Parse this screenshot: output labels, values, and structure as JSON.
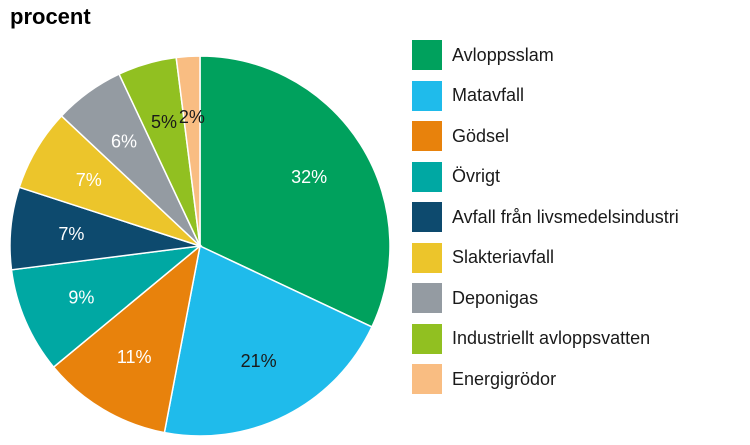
{
  "chart_data": {
    "type": "pie",
    "title": "procent",
    "slices": [
      {
        "label": "Avloppsslam",
        "value": 32,
        "value_label": "32%",
        "color": "#00a15d",
        "text_color": "#ffffff"
      },
      {
        "label": "Matavfall",
        "value": 21,
        "value_label": "21%",
        "color": "#1fbbeb",
        "text_color": "#1a1a1a"
      },
      {
        "label": "Gödsel",
        "value": 11,
        "value_label": "11%",
        "color": "#e8820c",
        "text_color": "#ffffff"
      },
      {
        "label": "Övrigt",
        "value": 9,
        "value_label": "9%",
        "color": "#00a8a3",
        "text_color": "#ffffff"
      },
      {
        "label": "Avfall från livsmedelsindustri",
        "value": 7,
        "value_label": "7%",
        "color": "#0d4a6e",
        "text_color": "#ffffff"
      },
      {
        "label": "Slakteriavfall",
        "value": 7,
        "value_label": "7%",
        "color": "#ecc52b",
        "text_color": "#ffffff"
      },
      {
        "label": "Deponigas",
        "value": 6,
        "value_label": "6%",
        "color": "#949ba2",
        "text_color": "#ffffff"
      },
      {
        "label": "Industriellt avloppsvatten",
        "value": 5,
        "value_label": "5%",
        "color": "#91c021",
        "text_color": "#1a1a1a"
      },
      {
        "label": "Energigrödor",
        "value": 2,
        "value_label": "2%",
        "color": "#f9bd82",
        "text_color": "#1a1a1a"
      }
    ],
    "legend_position": "right"
  }
}
